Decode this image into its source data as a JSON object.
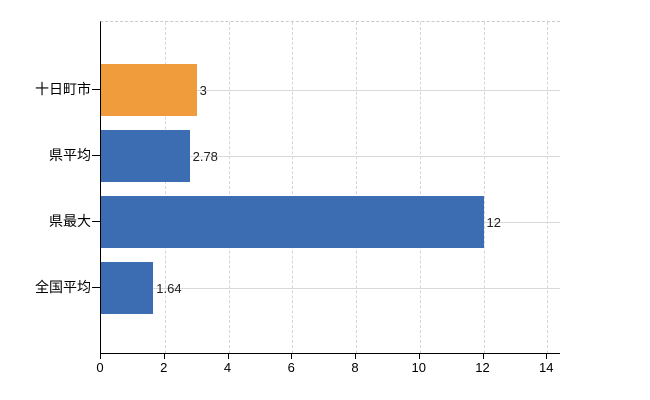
{
  "chart_data": {
    "type": "bar",
    "orientation": "horizontal",
    "title": "",
    "xlabel": "",
    "ylabel": "",
    "categories": [
      "十日町市",
      "県平均",
      "県最大",
      "全国平均"
    ],
    "values": [
      3,
      2.78,
      12,
      1.64
    ],
    "value_labels": [
      "3",
      "2.78",
      "12",
      "1.64"
    ],
    "bar_colors": [
      "#F09C3C",
      "#3C6DB3",
      "#3C6DB3",
      "#3C6DB3"
    ],
    "x_ticks": [
      0,
      2,
      4,
      6,
      8,
      10,
      12,
      14
    ],
    "x_tick_labels": [
      "0",
      "2",
      "4",
      "6",
      "8",
      "10",
      "12",
      "14"
    ],
    "xlim": [
      0,
      14.4
    ],
    "grid": true,
    "legend": "none"
  },
  "colors": {
    "accent_orange": "#F09C3C",
    "accent_blue": "#3C6DB3",
    "axis": "#000000",
    "gridline": "#d9d9d9",
    "background": "#ffffff",
    "label_text": "#222222"
  }
}
